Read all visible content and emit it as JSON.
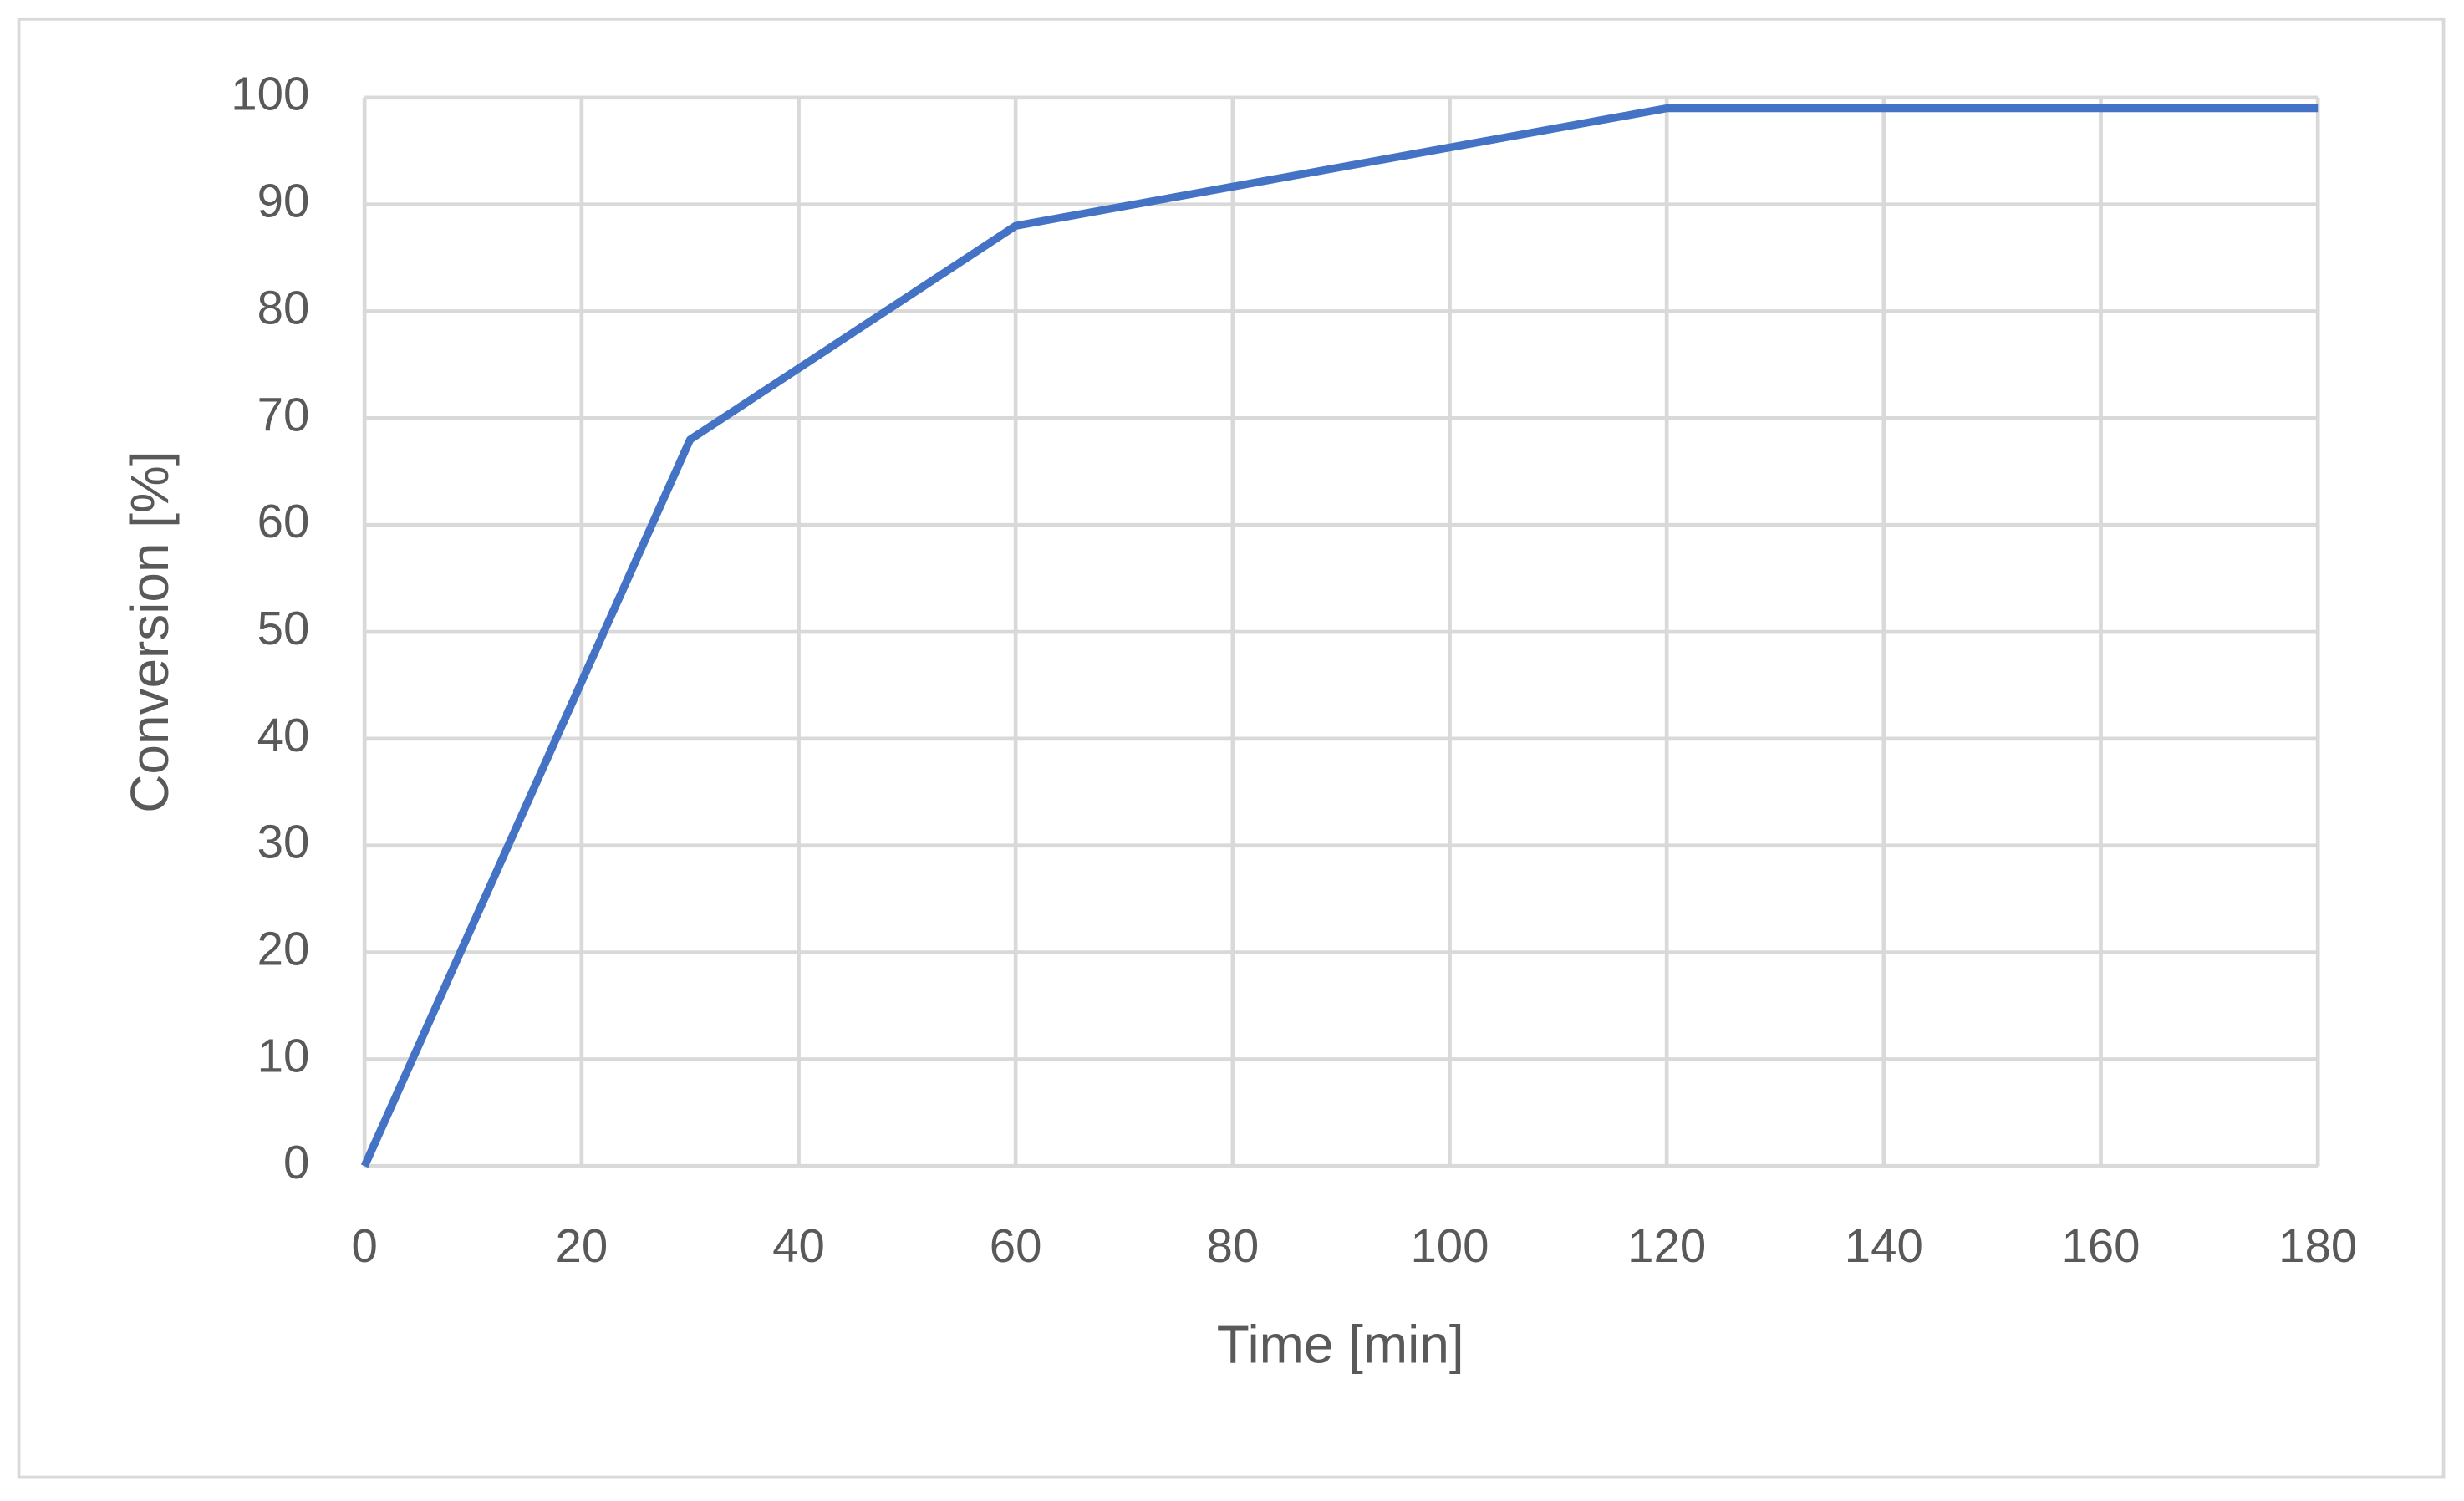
{
  "chart_data": {
    "type": "line",
    "x_label": "Time [min]",
    "y_label": "Conversion [%]",
    "x": [
      0,
      30,
      60,
      120,
      180
    ],
    "series": [
      {
        "name": "Conversion",
        "color": "#4472c4",
        "values": [
          0,
          68,
          88,
          99,
          99
        ]
      }
    ],
    "xlim": [
      0,
      180
    ],
    "xticks": [
      0,
      20,
      40,
      60,
      80,
      100,
      120,
      140,
      160,
      180
    ],
    "ylim": [
      0,
      100
    ],
    "yticks": [
      0,
      10,
      20,
      30,
      40,
      50,
      60,
      70,
      80,
      90,
      100
    ],
    "grid": true,
    "legend": false
  }
}
